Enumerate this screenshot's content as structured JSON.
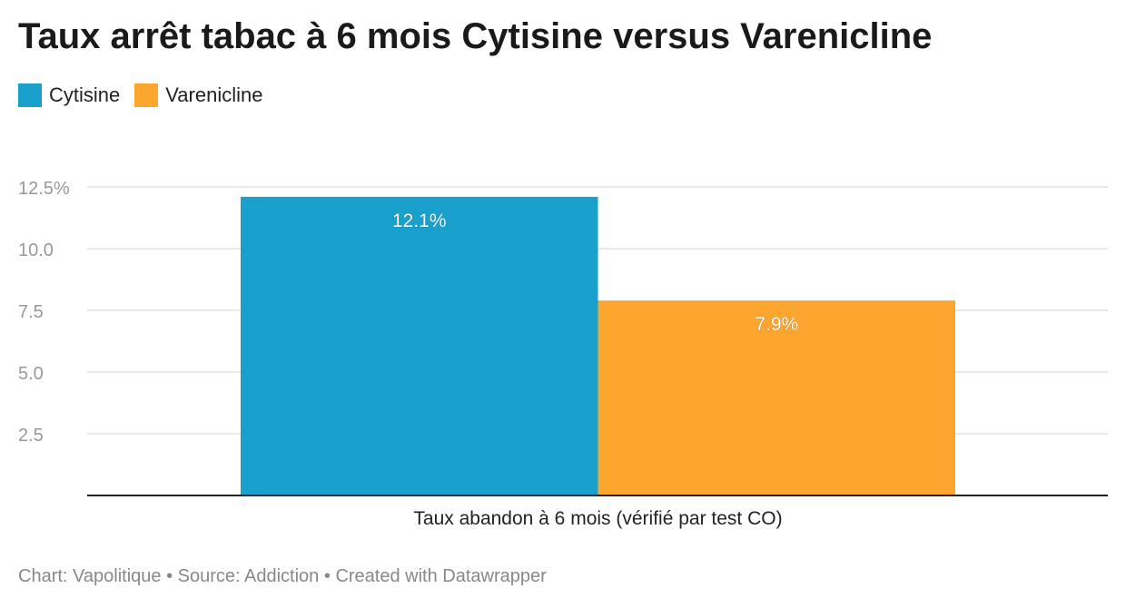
{
  "title": "Taux arrêt tabac à 6 mois Cytisine versus Varenicline",
  "footer": {
    "chart_label": "Chart: Vapolitique",
    "sep1": "•",
    "source": "Source: Addiction",
    "sep2": "•",
    "created": "Created with Datawrapper"
  },
  "colors": {
    "Cytisine": "#1aa0cc",
    "Varenicline": "#fca62f",
    "grid": "#e2e2e2",
    "axis": "#222222",
    "tick_text": "#999999"
  },
  "chart_data": {
    "type": "bar",
    "categories": [
      "Taux abandon à 6 mois (vérifié par test CO)"
    ],
    "series": [
      {
        "name": "Cytisine",
        "values": [
          12.1
        ],
        "label": "12.1%"
      },
      {
        "name": "Varenicline",
        "values": [
          7.9
        ],
        "label": "7.9%"
      }
    ],
    "yticks": [
      {
        "value": 2.5,
        "label": "2.5"
      },
      {
        "value": 5.0,
        "label": "5.0"
      },
      {
        "value": 7.5,
        "label": "7.5"
      },
      {
        "value": 10.0,
        "label": "10.0"
      },
      {
        "value": 12.5,
        "label": "12.5%"
      }
    ],
    "ylim": [
      0,
      12.5
    ],
    "grid": true,
    "legend_position": "top-left",
    "title": "Taux arrêt tabac à 6 mois Cytisine versus Varenicline",
    "xlabel": "",
    "ylabel": ""
  }
}
